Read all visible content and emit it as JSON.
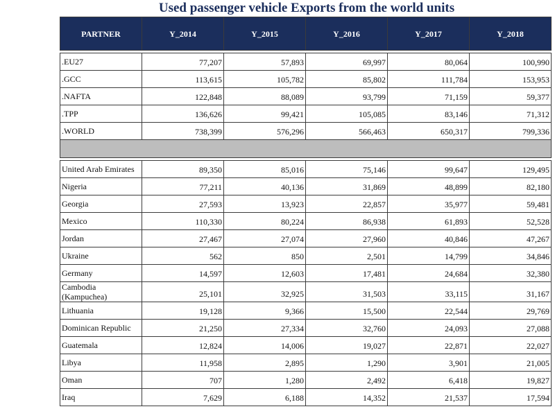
{
  "chart_data": {
    "type": "table",
    "title": "Used passenger vehicle Exports from the world units",
    "columns": [
      "PARTNER",
      "Y_2014",
      "Y_2015",
      "Y_2016",
      "Y_2017",
      "Y_2018"
    ],
    "group_rows": [
      {
        "partner": ".EU27",
        "values": [
          "77,207",
          "57,893",
          "69,997",
          "80,064",
          "100,990"
        ]
      },
      {
        "partner": ".GCC",
        "values": [
          "113,615",
          "105,782",
          "85,802",
          "111,784",
          "153,953"
        ]
      },
      {
        "partner": ".NAFTA",
        "values": [
          "122,848",
          "88,089",
          "93,799",
          "71,159",
          "59,377"
        ]
      },
      {
        "partner": ".TPP",
        "values": [
          "136,626",
          "99,421",
          "105,085",
          "83,146",
          "71,312"
        ]
      },
      {
        "partner": ".WORLD",
        "values": [
          "738,399",
          "576,296",
          "566,463",
          "650,317",
          "799,336"
        ]
      }
    ],
    "country_rows": [
      {
        "partner": "United Arab Emirates",
        "values": [
          "89,350",
          "85,016",
          "75,146",
          "99,647",
          "129,495"
        ]
      },
      {
        "partner": "Nigeria",
        "values": [
          "77,211",
          "40,136",
          "31,869",
          "48,899",
          "82,180"
        ]
      },
      {
        "partner": "Georgia",
        "values": [
          "27,593",
          "13,923",
          "22,857",
          "35,977",
          "59,481"
        ]
      },
      {
        "partner": "Mexico",
        "values": [
          "110,330",
          "80,224",
          "86,938",
          "61,893",
          "52,528"
        ]
      },
      {
        "partner": "Jordan",
        "values": [
          "27,467",
          "27,074",
          "27,960",
          "40,846",
          "47,267"
        ]
      },
      {
        "partner": "Ukraine",
        "values": [
          "562",
          "850",
          "2,501",
          "14,799",
          "34,846"
        ]
      },
      {
        "partner": "Germany",
        "values": [
          "14,597",
          "12,603",
          "17,481",
          "24,684",
          "32,380"
        ]
      },
      {
        "partner": "Cambodia (Kampuchea)",
        "values": [
          "25,101",
          "32,925",
          "31,503",
          "33,115",
          "31,167"
        ]
      },
      {
        "partner": "Lithuania",
        "values": [
          "19,128",
          "9,366",
          "15,500",
          "22,544",
          "29,769"
        ]
      },
      {
        "partner": "Dominican Republic",
        "values": [
          "21,250",
          "27,334",
          "32,760",
          "24,093",
          "27,088"
        ]
      },
      {
        "partner": "Guatemala",
        "values": [
          "12,824",
          "14,006",
          "19,027",
          "22,871",
          "22,027"
        ]
      },
      {
        "partner": "Libya",
        "values": [
          "11,958",
          "2,895",
          "1,290",
          "3,901",
          "21,005"
        ]
      },
      {
        "partner": "Oman",
        "values": [
          "707",
          "1,280",
          "2,492",
          "6,418",
          "19,827"
        ]
      },
      {
        "partner": "Iraq",
        "values": [
          "7,629",
          "6,188",
          "14,352",
          "21,537",
          "17,594"
        ]
      }
    ]
  }
}
